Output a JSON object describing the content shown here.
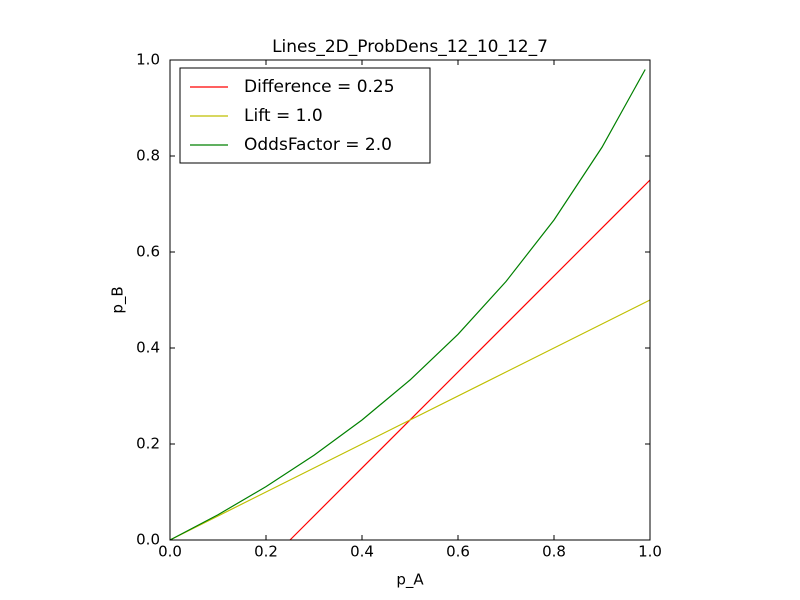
{
  "chart_data": {
    "type": "line",
    "title": "Lines_2D_ProbDens_12_10_12_7",
    "x_label": "p_A",
    "y_label": "p_B",
    "series": [
      {
        "name": "Difference = 0.25",
        "color": "#ff0000",
        "x": [
          0.25,
          1.0
        ],
        "values": [
          0,
          0.75
        ]
      },
      {
        "name": "Lift = 1.0",
        "color": "#bfbf00",
        "x": [
          0,
          1.0
        ],
        "values": [
          0,
          0.5
        ]
      },
      {
        "name": "OddsFactor = 2.0",
        "color": "#008000",
        "x": [
          0,
          0.1,
          0.2,
          0.3,
          0.4,
          0.5,
          0.6,
          0.7,
          0.8,
          0.9,
          0.99
        ],
        "values": [
          0,
          0.0526,
          0.1111,
          0.1765,
          0.25,
          0.3333,
          0.4286,
          0.5385,
          0.6667,
          0.8182,
          0.9802
        ]
      }
    ],
    "xlim": [
      0,
      1
    ],
    "ylim": [
      0,
      1
    ],
    "xticks": [
      {
        "value": 0,
        "label": "0.0"
      },
      0.2,
      0.4,
      0.6,
      0.8,
      {
        "value": 1,
        "label": "1.0"
      }
    ],
    "yticks": [
      {
        "value": 0,
        "label": "0.0"
      },
      0.2,
      0.4,
      0.6,
      0.8,
      {
        "value": 1,
        "label": "1.0"
      }
    ],
    "legend": "upper left"
  }
}
